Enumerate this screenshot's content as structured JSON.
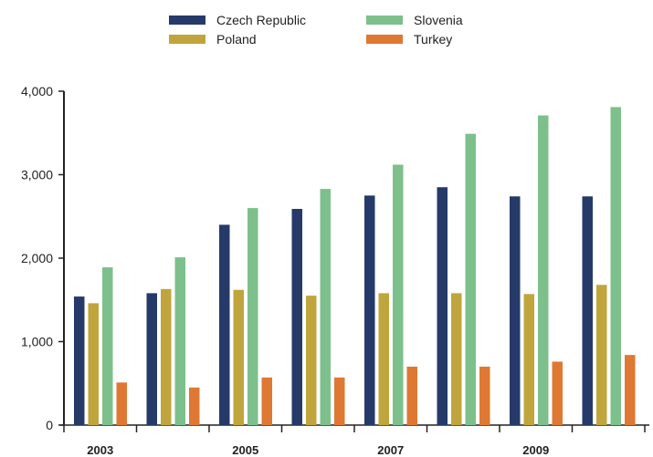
{
  "chart_data": {
    "type": "bar",
    "categories": [
      "2003",
      "2004",
      "2005",
      "2006",
      "2007",
      "2008",
      "2009",
      "2010"
    ],
    "x_tick_labels_shown": [
      "2003",
      "2005",
      "2007",
      "2009"
    ],
    "ylim": [
      0,
      4000
    ],
    "yticks": [
      0,
      1000,
      2000,
      3000,
      4000
    ],
    "ytick_labels": [
      "0",
      "1,000",
      "2,000",
      "3,000",
      "4,000"
    ],
    "grid": false,
    "legend_position": "top",
    "series": [
      {
        "name": "Czech Republic",
        "color": "#253a68",
        "values": [
          1540,
          1580,
          2400,
          2590,
          2750,
          2850,
          2740,
          2740
        ]
      },
      {
        "name": "Poland",
        "color": "#c0a53c",
        "values": [
          1460,
          1630,
          1620,
          1550,
          1580,
          1580,
          1570,
          1680
        ]
      },
      {
        "name": "Slovenia",
        "color": "#7dc08c",
        "values": [
          1890,
          2010,
          2600,
          2830,
          3120,
          3490,
          3710,
          3810
        ]
      },
      {
        "name": "Turkey",
        "color": "#df7833",
        "values": [
          510,
          450,
          570,
          570,
          700,
          700,
          760,
          840
        ]
      }
    ]
  }
}
